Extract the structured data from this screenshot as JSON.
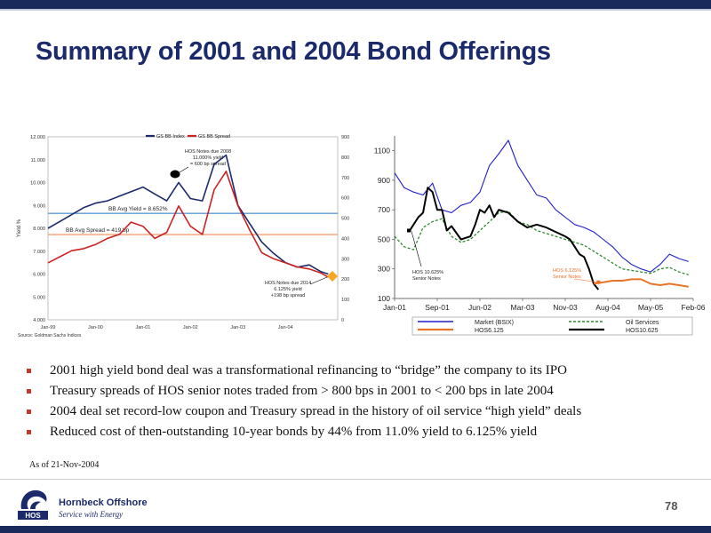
{
  "slide": {
    "title": "Summary of 2001 and 2004 Bond Offerings",
    "page_number": "78",
    "as_of": "As of 21-Nov-2004",
    "bullets": [
      "2001 high yield bond deal was a transformational refinancing to “bridge” the company to its IPO",
      "Treasury spreads of HOS senior notes traded from > 800 bps in 2001 to < 200 bps in late 2004",
      "2004 deal set record-low coupon and Treasury spread in the history of oil service “high yield” deals",
      "Reduced cost of then-outstanding 10-year bonds by 44% from 11.0% yield to 6.125% yield"
    ],
    "footer": {
      "company": "Hornbeck Offshore",
      "tagline": "Service with Energy",
      "logo_letters": "HOS"
    }
  },
  "colors": {
    "title": "#1b2a6b",
    "bullet": "#c0392b",
    "index_series": "#1b2a6b",
    "spread_series": "#cc2222",
    "avg_yield_line": "#5b9bd5",
    "avg_spread_line": "#f4a070",
    "market_series": "#1f1fcc",
    "oil_series": "#2e8b2e",
    "hos6125_series": "#e8742a",
    "hos10625_series": "#000000"
  },
  "chart_data": [
    {
      "type": "line",
      "legend": [
        "GS BB Index",
        "GS BB Spread"
      ],
      "legend_placement": "top",
      "ylabel": "Yield %",
      "yticks_left": [
        "12.000",
        "11.000",
        "10.000",
        "9.000",
        "8.000",
        "7.000",
        "6.000",
        "5.000",
        "4.000"
      ],
      "yticks_right": [
        "900",
        "800",
        "700",
        "600",
        "500",
        "400",
        "300",
        "200",
        "100",
        "0"
      ],
      "xticks": [
        "Jan-99",
        "Jan-00",
        "Jan-01",
        "Jan-02",
        "Jan-03",
        "Jan-04"
      ],
      "ylim_left": [
        4,
        12
      ],
      "ylim_right": [
        0,
        900
      ],
      "source": "Source: Goldman Sachs Indices",
      "reference_lines": [
        {
          "label": "BB Avg Yield = 8.652%",
          "axis": "left",
          "value": 8.652
        },
        {
          "label": "BB Avg Spread = 419 bp",
          "axis": "right",
          "value": 419
        }
      ],
      "annotations": [
        {
          "lines": [
            "HOS Notes due 2008",
            "11.000% yield",
            "= 600 bp spread"
          ]
        },
        {
          "lines": [
            "HOS Notes due 2014",
            "6.125% yield",
            "+198 bp spread"
          ]
        }
      ],
      "series": [
        {
          "name": "GS BB Index",
          "axis": "left",
          "x": [
            1999.0,
            1999.25,
            1999.5,
            1999.75,
            2000.0,
            2000.25,
            2000.5,
            2000.75,
            2001.0,
            2001.25,
            2001.5,
            2001.75,
            2002.0,
            2002.25,
            2002.5,
            2002.75,
            2003.0,
            2003.25,
            2003.5,
            2003.75,
            2004.0,
            2004.25,
            2004.5,
            2004.75,
            2004.9
          ],
          "y": [
            8.0,
            8.3,
            8.6,
            8.9,
            9.1,
            9.2,
            9.4,
            9.6,
            9.8,
            9.5,
            9.2,
            10.0,
            9.3,
            9.2,
            10.8,
            11.2,
            9.0,
            8.2,
            7.4,
            6.9,
            6.5,
            6.3,
            6.4,
            6.1,
            6.0
          ]
        },
        {
          "name": "GS BB Spread",
          "axis": "right",
          "x": [
            1999.0,
            1999.25,
            1999.5,
            1999.75,
            2000.0,
            2000.25,
            2000.5,
            2000.75,
            2001.0,
            2001.25,
            2001.5,
            2001.75,
            2002.0,
            2002.25,
            2002.5,
            2002.75,
            2003.0,
            2003.25,
            2003.5,
            2003.75,
            2004.0,
            2004.25,
            2004.5,
            2004.75,
            2004.9
          ],
          "y": [
            280,
            310,
            340,
            350,
            370,
            400,
            420,
            480,
            460,
            400,
            430,
            560,
            460,
            420,
            640,
            730,
            560,
            440,
            330,
            300,
            280,
            260,
            250,
            230,
            210
          ]
        }
      ]
    },
    {
      "type": "line",
      "yticks": [
        "1100",
        "900",
        "700",
        "500",
        "300",
        "100"
      ],
      "ylim": [
        100,
        1200
      ],
      "xticks": [
        "Jan-01",
        "Sep-01",
        "Jun-02",
        "Mar-03",
        "Nov-03",
        "Aug-04",
        "May-05",
        "Feb-06"
      ],
      "legend": [
        "Market (BSIX)",
        "Oil Services",
        "HOS6.125",
        "HOS10.625"
      ],
      "legend_placement": "bottom",
      "annotations": [
        {
          "lines": [
            "HOS 10.625%",
            "Senior Notes"
          ]
        },
        {
          "lines": [
            "HOS 6.125%",
            "Senior Notes"
          ]
        }
      ],
      "series": [
        {
          "name": "Market (BSIX)",
          "x": [
            0,
            2,
            4,
            6,
            8,
            10,
            12,
            14,
            16,
            18,
            20,
            22,
            24,
            26,
            28,
            30,
            32,
            34,
            36,
            38,
            40,
            42,
            44,
            46,
            48,
            50,
            52,
            54,
            56,
            58,
            60,
            62
          ],
          "y": [
            950,
            850,
            820,
            800,
            880,
            700,
            680,
            730,
            750,
            820,
            1000,
            1080,
            1170,
            1000,
            900,
            800,
            780,
            700,
            650,
            600,
            580,
            550,
            500,
            450,
            380,
            330,
            300,
            280,
            330,
            400,
            370,
            350
          ]
        },
        {
          "name": "Oil Services",
          "x": [
            0,
            2,
            4,
            6,
            8,
            10,
            12,
            14,
            16,
            18,
            20,
            22,
            24,
            26,
            28,
            30,
            32,
            34,
            36,
            38,
            40,
            42,
            44,
            46,
            48,
            50,
            52,
            54,
            56,
            58,
            60,
            62
          ],
          "y": [
            520,
            450,
            430,
            580,
            620,
            640,
            520,
            480,
            500,
            560,
            620,
            680,
            690,
            620,
            600,
            560,
            540,
            520,
            500,
            480,
            460,
            420,
            380,
            340,
            300,
            290,
            280,
            270,
            300,
            310,
            280,
            260
          ]
        },
        {
          "name": "HOS10.625",
          "x": [
            3,
            5,
            6,
            7,
            8,
            9,
            10,
            11,
            12,
            14,
            16,
            17,
            18,
            19,
            20,
            21,
            22,
            24,
            26,
            28,
            30,
            32,
            34,
            36,
            37,
            38,
            39,
            40,
            41,
            42,
            43
          ],
          "y": [
            550,
            650,
            680,
            850,
            820,
            700,
            700,
            560,
            590,
            500,
            520,
            600,
            700,
            680,
            730,
            650,
            700,
            680,
            620,
            580,
            600,
            580,
            550,
            520,
            500,
            450,
            400,
            380,
            300,
            200,
            160
          ]
        },
        {
          "name": "HOS6.125",
          "x": [
            42,
            44,
            46,
            48,
            50,
            52,
            54,
            56,
            58,
            60,
            62
          ],
          "y": [
            200,
            210,
            220,
            220,
            230,
            230,
            200,
            190,
            200,
            190,
            180
          ]
        }
      ]
    }
  ]
}
